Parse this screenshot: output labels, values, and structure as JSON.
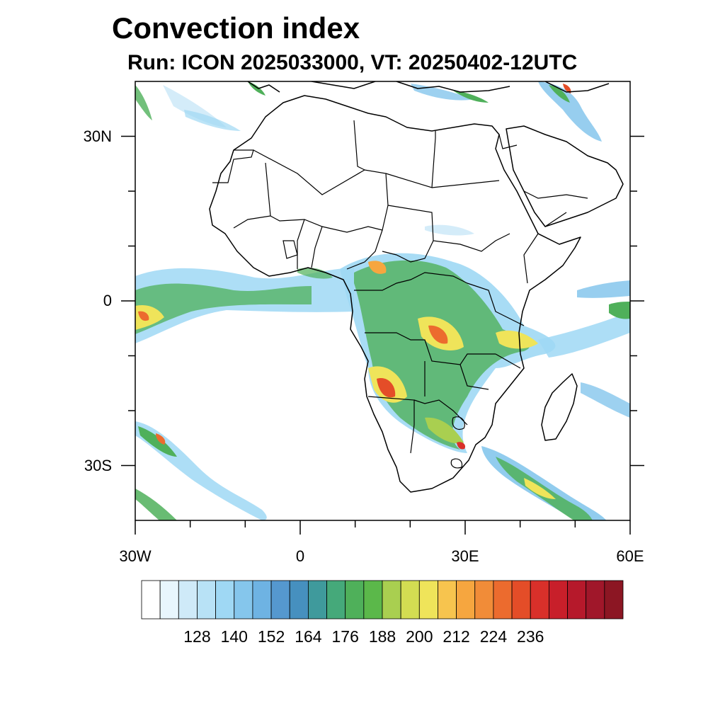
{
  "header": {
    "title": "Convection index",
    "subtitle": "Run: ICON 2025033000,  VT: 20250402-12UTC"
  },
  "map": {
    "region": "Africa",
    "lon_range": [
      -30,
      60
    ],
    "lat_range": [
      -40,
      40
    ],
    "lat_ticks": [
      {
        "value": 30,
        "label": "30N"
      },
      {
        "value": 0,
        "label": "0"
      },
      {
        "value": -30,
        "label": "30S"
      }
    ],
    "lon_ticks": [
      {
        "value": -30,
        "label": "30W"
      },
      {
        "value": 0,
        "label": "0"
      },
      {
        "value": 30,
        "label": "30E"
      },
      {
        "value": 60,
        "label": "60E"
      }
    ]
  },
  "colorbar": {
    "colors": [
      "#ffffff",
      "#e8f6fd",
      "#cfeaf8",
      "#b8e2f6",
      "#9fd8f4",
      "#85c6ec",
      "#6eb3e3",
      "#5598cf",
      "#4690bf",
      "#3f9a9c",
      "#45a97a",
      "#4fb05a",
      "#5bb84a",
      "#a9cf50",
      "#d3dd52",
      "#efe45a",
      "#f7c44e",
      "#f6a63f",
      "#f18c38",
      "#ec6b2e",
      "#e44d28",
      "#d9302a",
      "#c81f2a",
      "#b6192b",
      "#a0172a",
      "#8c1623"
    ],
    "label_values": [
      "128",
      "140",
      "152",
      "164",
      "176",
      "188",
      "200",
      "212",
      "224",
      "236"
    ]
  }
}
